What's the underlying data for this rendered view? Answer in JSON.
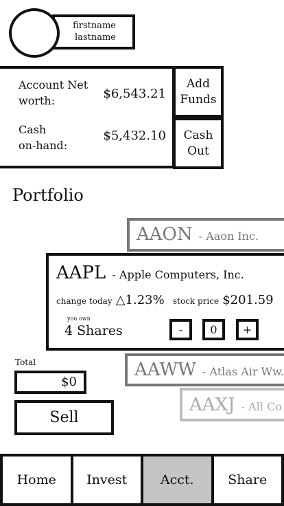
{
  "profile": {
    "firstname": "firstname",
    "lastname": "lastname"
  },
  "account": {
    "net_worth_label_1": "Account Net",
    "net_worth_label_2": "worth:",
    "net_worth_value": "$6,543.21",
    "cash_label_1": "Cash",
    "cash_label_2": "on-hand:",
    "cash_value": "$5,432.10",
    "add_funds_1": "Add",
    "add_funds_2": "Funds",
    "cash_out_1": "Cash",
    "cash_out_2": "Out"
  },
  "portfolio_title": "Portfolio",
  "stocks": [
    {
      "ticker": "AAON",
      "name": "Aaon Inc."
    },
    {
      "ticker": "AAPL",
      "name": "Apple Computers, Inc."
    },
    {
      "ticker": "AAWW",
      "name": "Atlas Air Ww."
    },
    {
      "ticker": "AAXJ",
      "name": "All Co"
    }
  ],
  "selected": {
    "change_label": "change today",
    "change_icon": "triangle-up-icon",
    "change_value": "1.23%",
    "price_label": "stock price",
    "price_value": "$201.59",
    "you_own_label": "you own",
    "shares": "4 Shares",
    "minus": "-",
    "quantity": "0",
    "plus": "+"
  },
  "order": {
    "total_label": "Total",
    "total_value": "$0",
    "sell_label": "Sell"
  },
  "nav": [
    {
      "label": "Home"
    },
    {
      "label": "Invest"
    },
    {
      "label": "Acct."
    },
    {
      "label": "Share"
    }
  ],
  "colors": {
    "active_tab": "#c4c4c4",
    "gray_1": "#777777",
    "gray_2": "#999999",
    "gray_3": "#bbbbbb"
  }
}
